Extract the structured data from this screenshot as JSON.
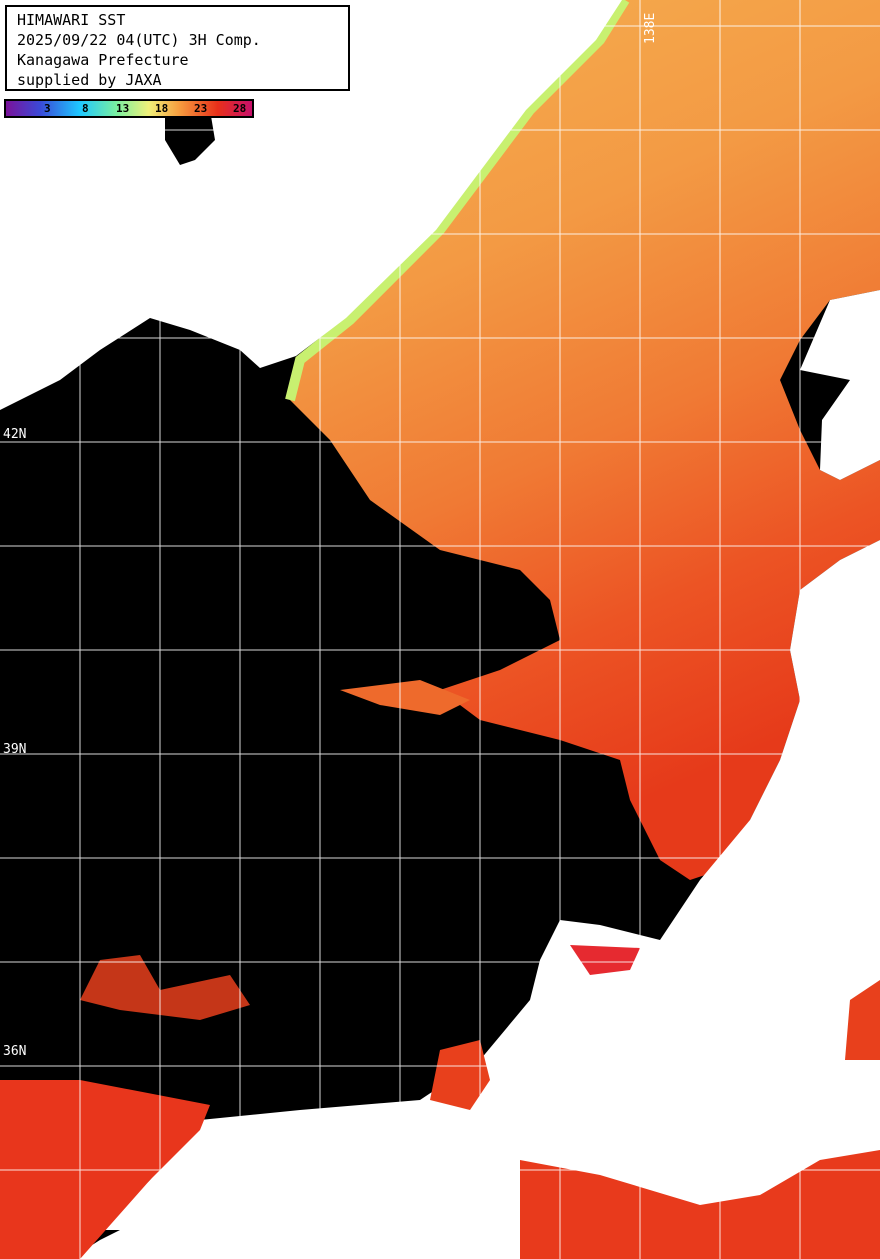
{
  "title": {
    "lines": [
      "HIMAWARI SST",
      "2025/09/22 04(UTC) 3H Comp.",
      "Kanagawa Prefecture",
      "supplied by JAXA"
    ]
  },
  "legend": {
    "ticks": [
      "3",
      "8",
      "13",
      "18",
      "23",
      "28"
    ],
    "colors": {
      "min": "#7a129a",
      "cold": "#1ec8ff",
      "mid": "#f0f07a",
      "warm": "#f7a040",
      "hot": "#e8301a",
      "max": "#c8106a"
    }
  },
  "grid": {
    "lat_labels": [
      "42N",
      "39N",
      "36N"
    ],
    "lon_labels": [
      "138E"
    ]
  },
  "colors": {
    "land": "#ffffff",
    "no_data": "#000000",
    "sea_north": "#f7a848",
    "sea_south": "#e63a1a",
    "coastal_cool": "#c8f070"
  }
}
